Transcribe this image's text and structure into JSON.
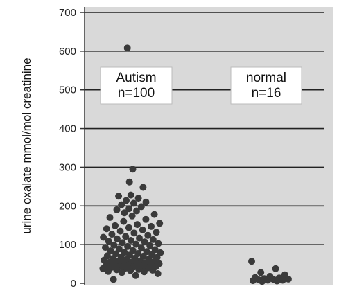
{
  "chart_data": {
    "type": "scatter",
    "title": "",
    "xlabel": "",
    "ylabel": "urine oxalate mmol/mol creatinine",
    "ylim": [
      0,
      700
    ],
    "y_ticks": [
      0,
      100,
      200,
      300,
      400,
      500,
      600,
      700
    ],
    "grid": true,
    "plot_background": "#d9d9d9",
    "point_color": "#3a3a3a",
    "groups": [
      {
        "name": "Autism",
        "label_lines": [
          "Autism",
          "n=100"
        ],
        "values": [
          608,
          295,
          262,
          248,
          228,
          225,
          220,
          214,
          210,
          207,
          203,
          198,
          193,
          190,
          187,
          182,
          178,
          174,
          170,
          165,
          160,
          155,
          152,
          149,
          147,
          144,
          141,
          138,
          135,
          132,
          130,
          127,
          124,
          121,
          119,
          117,
          115,
          113,
          111,
          109,
          107,
          105,
          103,
          101,
          99,
          97,
          95,
          93,
          91,
          89,
          87,
          85,
          84,
          82,
          80,
          79,
          77,
          76,
          74,
          73,
          71,
          70,
          68,
          67,
          65,
          64,
          62,
          61,
          60,
          58,
          57,
          56,
          55,
          54,
          53,
          52,
          51,
          50,
          49,
          48,
          47,
          46,
          45,
          44,
          43,
          42,
          41,
          40,
          39,
          38,
          36,
          35,
          34,
          33,
          31,
          30,
          28,
          25,
          20,
          10
        ]
      },
      {
        "name": "normal",
        "label_lines": [
          "normal",
          "n=16"
        ],
        "values": [
          57,
          38,
          28,
          22,
          18,
          15,
          14,
          12,
          11,
          10,
          9,
          8,
          8,
          7,
          6,
          5
        ]
      }
    ]
  }
}
